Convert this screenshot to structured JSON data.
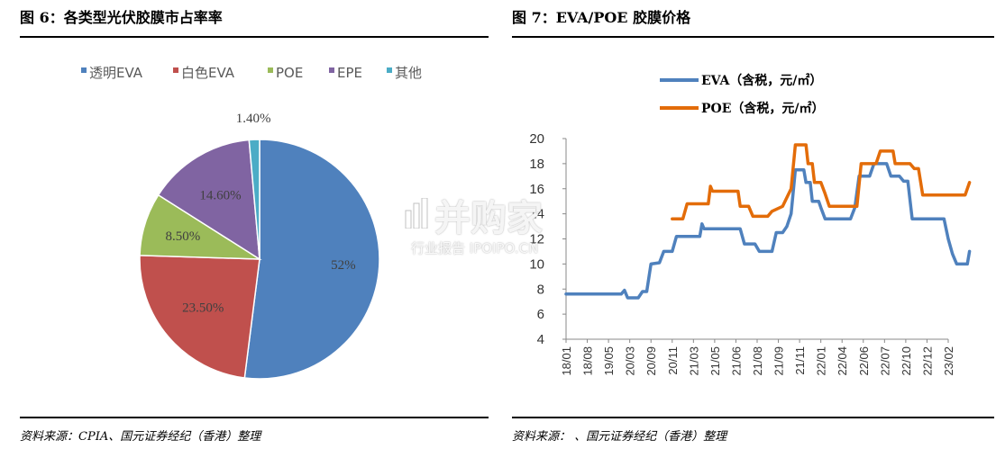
{
  "left": {
    "title": "图 6：各类型光伏胶膜市占率率",
    "source": "资料来源：CPIA、国元证券经纪（香港）整理"
  },
  "right": {
    "title": "图 7：EVA/POE 胶膜价格",
    "source": "资料来源：      、国元证券经纪（香港）整理"
  },
  "watermark": {
    "main": "并购家",
    "sub": "行业报告 IPOIPO.CN"
  },
  "chart_data": [
    {
      "type": "pie",
      "title": "",
      "legend_position": "top",
      "slices": [
        {
          "name": "透明EVA",
          "value": 52,
          "label": "52%",
          "color": "#4f81bd"
        },
        {
          "name": "白色EVA",
          "value": 23.5,
          "label": "23.50%",
          "color": "#c0504d"
        },
        {
          "name": "POE",
          "value": 8.5,
          "label": "8.50%",
          "color": "#9bbb59"
        },
        {
          "name": "EPE",
          "value": 14.6,
          "label": "14.60%",
          "color": "#8064a2"
        },
        {
          "name": "其他",
          "value": 1.4,
          "label": "1.40%",
          "color": "#4bacc6"
        }
      ]
    },
    {
      "type": "line",
      "title": "",
      "legend_position": "top",
      "grid": false,
      "ylim": [
        4,
        20
      ],
      "yticks": [
        4,
        6,
        8,
        10,
        12,
        14,
        16,
        18,
        20
      ],
      "xtick_labels": [
        "18/01",
        "18/08",
        "19/05",
        "20/03",
        "20/09",
        "20/11",
        "21/03",
        "21/05",
        "21/06",
        "21/08",
        "21/09",
        "21/11",
        "22/01",
        "22/04",
        "22/06",
        "22/07",
        "22/10",
        "22/12",
        "23/02"
      ],
      "series": [
        {
          "name": "EVA（含税，元/㎡）",
          "color": "#4f81bd",
          "values": [
            [
              0,
              7.6
            ],
            [
              2.6,
              7.6
            ],
            [
              2.75,
              7.9
            ],
            [
              2.9,
              7.3
            ],
            [
              3.4,
              7.3
            ],
            [
              3.6,
              7.8
            ],
            [
              3.8,
              7.8
            ],
            [
              4,
              10
            ],
            [
              4.4,
              10.1
            ],
            [
              4.6,
              11
            ],
            [
              5,
              11
            ],
            [
              5.2,
              12.2
            ],
            [
              6.3,
              12.2
            ],
            [
              6.4,
              13.2
            ],
            [
              6.5,
              12.8
            ],
            [
              8.2,
              12.8
            ],
            [
              8.4,
              11.6
            ],
            [
              8.6,
              11.6
            ],
            [
              8.9,
              11.6
            ],
            [
              9.1,
              11
            ],
            [
              9.7,
              11
            ],
            [
              9.9,
              12.5
            ],
            [
              10.2,
              12.5
            ],
            [
              10.4,
              13
            ],
            [
              10.6,
              14
            ],
            [
              10.8,
              17.5
            ],
            [
              11.2,
              17.5
            ],
            [
              11.3,
              16.5
            ],
            [
              11.5,
              16.5
            ],
            [
              11.6,
              15
            ],
            [
              11.9,
              15
            ],
            [
              12,
              14.5
            ],
            [
              12.2,
              13.6
            ],
            [
              13.4,
              13.6
            ],
            [
              13.6,
              14.5
            ],
            [
              13.8,
              17
            ],
            [
              14.3,
              17
            ],
            [
              14.5,
              18
            ],
            [
              15.1,
              18
            ],
            [
              15.3,
              17
            ],
            [
              15.7,
              17
            ],
            [
              15.9,
              16.6
            ],
            [
              16.1,
              16.6
            ],
            [
              16.3,
              13.6
            ],
            [
              17.8,
              13.6
            ],
            [
              18,
              12
            ],
            [
              18.2,
              10.8
            ],
            [
              18.4,
              10
            ],
            [
              18.9,
              10
            ],
            [
              19,
              11
            ]
          ]
        },
        {
          "name": "POE（含税，元/㎡）",
          "color": "#e36c09",
          "values": [
            [
              5,
              13.6
            ],
            [
              5.5,
              13.6
            ],
            [
              5.7,
              14.8
            ],
            [
              6.7,
              14.8
            ],
            [
              6.8,
              16.2
            ],
            [
              6.9,
              15.8
            ],
            [
              8.1,
              15.8
            ],
            [
              8.2,
              14.6
            ],
            [
              8.6,
              14.6
            ],
            [
              8.8,
              13.8
            ],
            [
              9.5,
              13.8
            ],
            [
              9.7,
              14.2
            ],
            [
              10.2,
              14.6
            ],
            [
              10.6,
              16
            ],
            [
              10.8,
              19.5
            ],
            [
              11.3,
              19.5
            ],
            [
              11.4,
              18
            ],
            [
              11.6,
              18
            ],
            [
              11.7,
              16.5
            ],
            [
              12,
              16.5
            ],
            [
              12.2,
              15.6
            ],
            [
              12.4,
              14.6
            ],
            [
              13.7,
              14.6
            ],
            [
              13.9,
              18
            ],
            [
              14.6,
              18
            ],
            [
              14.8,
              19
            ],
            [
              15.4,
              19
            ],
            [
              15.5,
              18
            ],
            [
              16.2,
              18
            ],
            [
              16.4,
              17.6
            ],
            [
              16.6,
              17.6
            ],
            [
              16.8,
              15.5
            ],
            [
              18.8,
              15.5
            ],
            [
              19,
              16.5
            ]
          ]
        }
      ]
    }
  ]
}
